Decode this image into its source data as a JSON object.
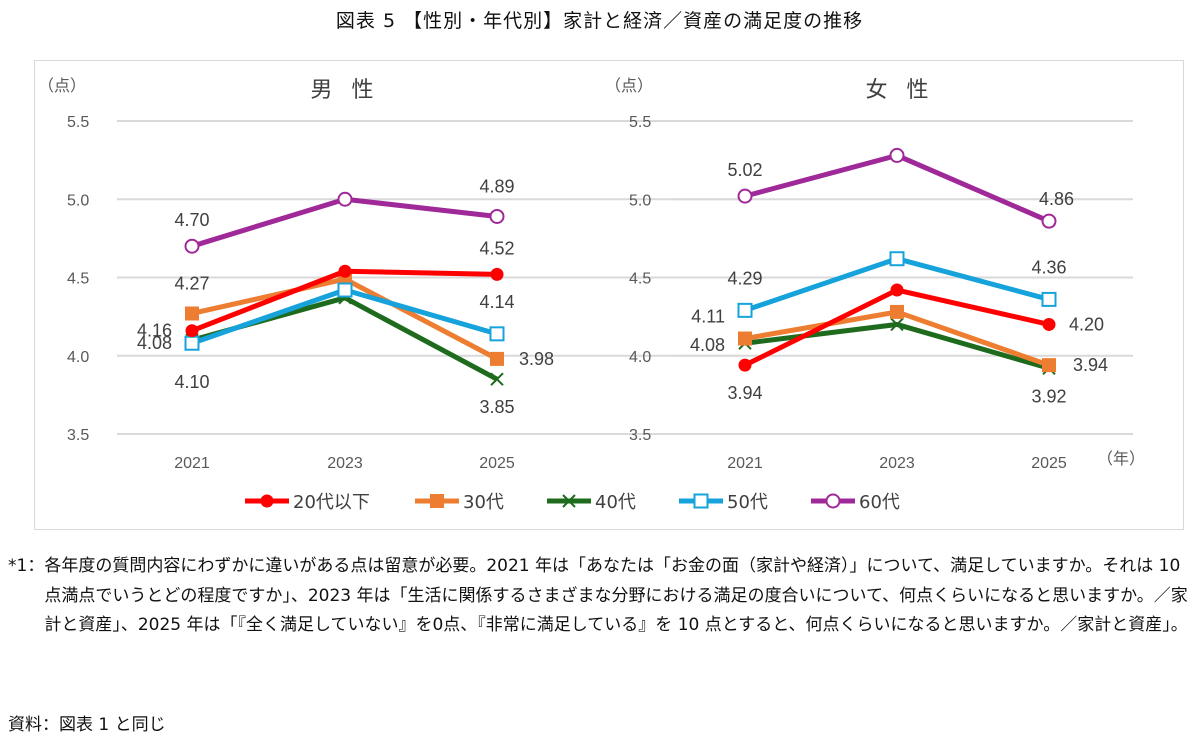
{
  "figure_title": "図表 5 【性別・年代別】家計と経済／資産の満足度の推移",
  "chart_data": [
    {
      "type": "line",
      "title": "男 性",
      "ylabel": "（点）",
      "xlabel": "",
      "ylim": [
        3.5,
        5.5
      ],
      "yticks": [
        "5.5",
        "5.0",
        "4.5",
        "4.0",
        "3.5"
      ],
      "ytick_values": [
        5.5,
        5.0,
        4.5,
        4.0,
        3.5
      ],
      "grid": true,
      "categories": [
        "2021",
        "2023",
        "2025"
      ],
      "series": [
        {
          "name": "20代以下",
          "values": [
            4.16,
            4.54,
            4.52
          ],
          "labels": [
            "4.16",
            "",
            "4.52"
          ]
        },
        {
          "name": "30代",
          "values": [
            4.27,
            4.49,
            3.98
          ],
          "labels": [
            "4.27",
            "",
            "3.98"
          ]
        },
        {
          "name": "40代",
          "values": [
            4.1,
            4.37,
            3.85
          ],
          "labels": [
            "4.10",
            "",
            "3.85"
          ]
        },
        {
          "name": "50代",
          "values": [
            4.08,
            4.42,
            4.14
          ],
          "labels": [
            "4.08",
            "",
            "4.14"
          ]
        },
        {
          "name": "60代",
          "values": [
            4.7,
            5.0,
            4.89
          ],
          "labels": [
            "4.70",
            "",
            "4.89"
          ]
        }
      ]
    },
    {
      "type": "line",
      "title": "女 性",
      "ylabel": "（点）",
      "xlabel": "（年）",
      "ylim": [
        3.5,
        5.5
      ],
      "yticks": [
        "5.5",
        "5.0",
        "4.5",
        "4.0",
        "3.5"
      ],
      "ytick_values": [
        5.5,
        5.0,
        4.5,
        4.0,
        3.5
      ],
      "grid": true,
      "categories": [
        "2021",
        "2023",
        "2025"
      ],
      "series": [
        {
          "name": "20代以下",
          "values": [
            3.94,
            4.42,
            4.2
          ],
          "labels": [
            "3.94",
            "",
            "4.20"
          ]
        },
        {
          "name": "30代",
          "values": [
            4.11,
            4.28,
            3.94
          ],
          "labels": [
            "4.11",
            "",
            "3.94"
          ]
        },
        {
          "name": "40代",
          "values": [
            4.08,
            4.2,
            3.92
          ],
          "labels": [
            "4.08",
            "",
            "3.92"
          ]
        },
        {
          "name": "50代",
          "values": [
            4.29,
            4.62,
            4.36
          ],
          "labels": [
            "4.29",
            "",
            "4.36"
          ]
        },
        {
          "name": "60代",
          "values": [
            5.02,
            5.28,
            4.86
          ],
          "labels": [
            "5.02",
            "",
            "4.86"
          ]
        }
      ]
    }
  ],
  "legend": {
    "placement": "bottom",
    "items": [
      {
        "name": "20代以下",
        "color": "#FF0000",
        "marker": "filled-circle"
      },
      {
        "name": "30代",
        "color": "#ED7D31",
        "marker": "filled-square"
      },
      {
        "name": "40代",
        "color": "#1E6B1E",
        "marker": "x-cross"
      },
      {
        "name": "50代",
        "color": "#16A3DB",
        "marker": "open-square"
      },
      {
        "name": "60代",
        "color": "#A0299A",
        "marker": "open-circle"
      }
    ]
  },
  "notes": {
    "mark": "*1：",
    "text": "各年度の質問内容にわずかに違いがある点は留意が必要。2021 年は「あなたは「お金の面（家計や経済）」について、満足していますか。それは 10 点満点でいうとどの程度ですか」、2023 年は「生活に関係するさまざまな分野における満足の度合いについて、何点くらいになると思いますか。／家計と資産」、2025 年は「『全く満足していない』を0点、『非常に満足している』を 10 点とすると、何点くらいになると思いますか。／家計と資産」。"
  },
  "source": "資料：図表 1 と同じ"
}
